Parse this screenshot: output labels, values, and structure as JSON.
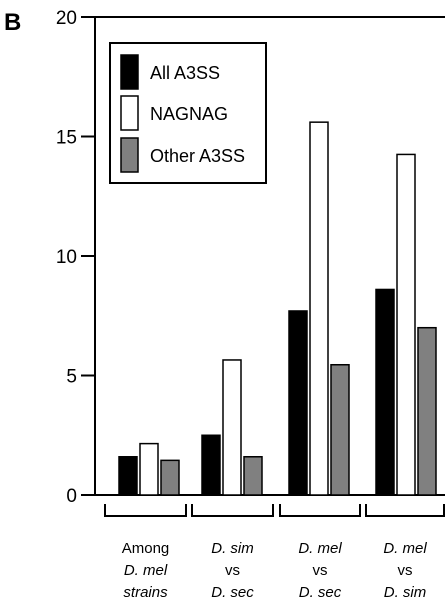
{
  "panel_label": "B",
  "chart_data": {
    "type": "bar",
    "ylim": [
      0,
      20
    ],
    "yticks": [
      "0",
      "5",
      "10",
      "15",
      "20"
    ],
    "categories": [
      [
        {
          "text": "Among",
          "italic": false
        },
        {
          "text": "D. mel",
          "italic": true
        },
        {
          "text": "strains",
          "italic": true
        }
      ],
      [
        {
          "text": "D. sim",
          "italic": true
        },
        {
          "text": "vs",
          "italic": false
        },
        {
          "text": "D. sec",
          "italic": true
        }
      ],
      [
        {
          "text": "D. mel",
          "italic": true
        },
        {
          "text": "vs",
          "italic": false
        },
        {
          "text": "D. sec",
          "italic": true
        }
      ],
      [
        {
          "text": "D. mel",
          "italic": true
        },
        {
          "text": "vs",
          "italic": false
        },
        {
          "text": "D. sim",
          "italic": true
        }
      ]
    ],
    "series": [
      {
        "name": "All A3SS",
        "color": "#000000",
        "values": [
          1.6,
          2.5,
          7.7,
          8.6
        ]
      },
      {
        "name": "NAGNAG",
        "color": "#ffffff",
        "values": [
          2.15,
          5.65,
          15.6,
          14.25
        ]
      },
      {
        "name": "Other A3SS",
        "color": "#808080",
        "values": [
          1.45,
          1.6,
          5.45,
          7.0
        ]
      }
    ],
    "legend_position": "top-left",
    "grid": false
  }
}
